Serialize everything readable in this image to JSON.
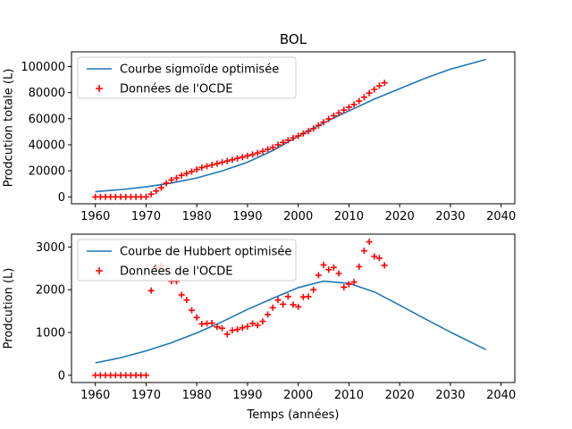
{
  "chart_data": [
    {
      "type": "line",
      "title": "BOL",
      "xlabel": "",
      "ylabel": "Prodcution totale (L)",
      "xlim": [
        1955.3,
        2042.7
      ],
      "ylim": [
        -5300,
        111300
      ],
      "xticks": [
        1960,
        1970,
        1980,
        1990,
        2000,
        2010,
        2020,
        2030,
        2040
      ],
      "yticks": [
        0,
        20000,
        40000,
        60000,
        80000,
        100000
      ],
      "legend_position": "upper-left",
      "series": [
        {
          "name": "Courbe sigmoïde optimisée",
          "kind": "line",
          "color": "#1f77b4",
          "x": [
            1960,
            1965,
            1970,
            1975,
            1980,
            1985,
            1990,
            1995,
            2000,
            2005,
            2010,
            2015,
            2020,
            2025,
            2030,
            2037
          ],
          "y": [
            4000,
            5600,
            7700,
            10600,
            14500,
            19900,
            26600,
            35600,
            46500,
            56800,
            66000,
            75000,
            83000,
            91000,
            98000,
            105500
          ]
        },
        {
          "name": "Données de l'OCDE",
          "kind": "scatter",
          "marker": "+",
          "color": "#ff0000",
          "x": [
            1960,
            1961,
            1962,
            1963,
            1964,
            1965,
            1966,
            1967,
            1968,
            1969,
            1970,
            1971,
            1972,
            1973,
            1974,
            1975,
            1976,
            1977,
            1978,
            1979,
            1980,
            1981,
            1982,
            1983,
            1984,
            1985,
            1986,
            1987,
            1988,
            1989,
            1990,
            1991,
            1992,
            1993,
            1994,
            1995,
            1996,
            1997,
            1998,
            1999,
            2000,
            2001,
            2002,
            2003,
            2004,
            2005,
            2006,
            2007,
            2008,
            2009,
            2010,
            2011,
            2012,
            2013,
            2014,
            2015,
            2016,
            2017
          ],
          "y": [
            0,
            0,
            0,
            0,
            0,
            0,
            0,
            0,
            0,
            0,
            0,
            2000,
            4500,
            7000,
            10500,
            13000,
            14500,
            16500,
            18000,
            19500,
            21000,
            22500,
            23500,
            24500,
            25500,
            26500,
            27500,
            28500,
            29500,
            30500,
            31500,
            32500,
            33700,
            35000,
            36500,
            38000,
            40000,
            41800,
            43500,
            45200,
            46800,
            48600,
            50400,
            52400,
            54800,
            57300,
            59800,
            62300,
            64400,
            66600,
            68800,
            70900,
            73500,
            76500,
            79600,
            82500,
            85300,
            87500
          ]
        }
      ]
    },
    {
      "type": "line",
      "title": "",
      "xlabel": "Temps (années)",
      "ylabel": "Prodcution (L)",
      "xlim": [
        1955.3,
        2042.7
      ],
      "ylim": [
        -170,
        3300
      ],
      "xticks": [
        1960,
        1970,
        1980,
        1990,
        2000,
        2010,
        2020,
        2030,
        2040
      ],
      "yticks": [
        0,
        1000,
        2000,
        3000
      ],
      "legend_position": "upper-left",
      "series": [
        {
          "name": "Courbe de Hubbert optimisée",
          "kind": "line",
          "color": "#1f77b4",
          "x": [
            1960,
            1965,
            1970,
            1975,
            1980,
            1985,
            1990,
            1995,
            2000,
            2005,
            2010,
            2015,
            2020,
            2025,
            2030,
            2037
          ],
          "y": [
            290,
            410,
            570,
            760,
            990,
            1250,
            1540,
            1800,
            2050,
            2200,
            2150,
            1950,
            1640,
            1320,
            1010,
            600
          ]
        },
        {
          "name": "Données de l'OCDE",
          "kind": "scatter",
          "marker": "+",
          "color": "#ff0000",
          "x": [
            1960,
            1961,
            1962,
            1963,
            1964,
            1965,
            1966,
            1967,
            1968,
            1969,
            1970,
            1971,
            1972,
            1973,
            1974,
            1975,
            1976,
            1977,
            1978,
            1979,
            1980,
            1981,
            1982,
            1983,
            1984,
            1985,
            1986,
            1987,
            1988,
            1989,
            1990,
            1991,
            1992,
            1993,
            1994,
            1995,
            1996,
            1997,
            1998,
            1999,
            2000,
            2001,
            2002,
            2003,
            2004,
            2005,
            2006,
            2007,
            2008,
            2009,
            2010,
            2011,
            2012,
            2013,
            2014,
            2015,
            2016,
            2017
          ],
          "y": [
            0,
            0,
            0,
            0,
            0,
            0,
            0,
            0,
            0,
            0,
            0,
            1980,
            2520,
            2560,
            2440,
            2200,
            2200,
            1880,
            1760,
            1520,
            1350,
            1200,
            1210,
            1220,
            1130,
            1100,
            960,
            1050,
            1070,
            1110,
            1140,
            1210,
            1170,
            1260,
            1420,
            1580,
            1760,
            1660,
            1840,
            1650,
            1600,
            1830,
            1840,
            2000,
            2340,
            2580,
            2470,
            2520,
            2380,
            2060,
            2130,
            2180,
            2540,
            2910,
            3120,
            2780,
            2740,
            2570
          ]
        }
      ]
    }
  ]
}
